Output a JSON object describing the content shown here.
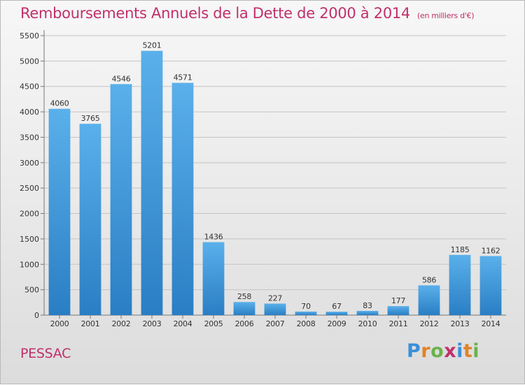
{
  "header": {
    "title": "Remboursements Annuels de la Dette de 2000 à 2014",
    "unit": "(en milliers d'€)"
  },
  "footer": {
    "commune": "PESSAC",
    "logo_text": "Proxiti"
  },
  "colors": {
    "title": "#c0306a",
    "bar_top": "#5ab0ea",
    "bar_bottom": "#2a7ec4",
    "logo_letters": [
      "#3a8fd8",
      "#e0832a",
      "#6ab24a",
      "#c0306a",
      "#3a8fd8",
      "#e0832a",
      "#6ab24a"
    ]
  },
  "chart_data": {
    "type": "bar",
    "title": "Remboursements Annuels de la Dette de 2000 à 2014",
    "xlabel": "",
    "ylabel": "",
    "categories": [
      "2000",
      "2001",
      "2002",
      "2003",
      "2004",
      "2005",
      "2006",
      "2007",
      "2008",
      "2009",
      "2010",
      "2011",
      "2012",
      "2013",
      "2014"
    ],
    "values": [
      4060,
      3765,
      4546,
      5201,
      4571,
      1436,
      258,
      227,
      70,
      67,
      83,
      177,
      586,
      1185,
      1162
    ],
    "ylim": [
      0,
      5500
    ],
    "yticks": [
      0,
      500,
      1000,
      1500,
      2000,
      2500,
      3000,
      3500,
      4000,
      4500,
      5000,
      5500
    ],
    "grid": true,
    "legend": "none"
  }
}
